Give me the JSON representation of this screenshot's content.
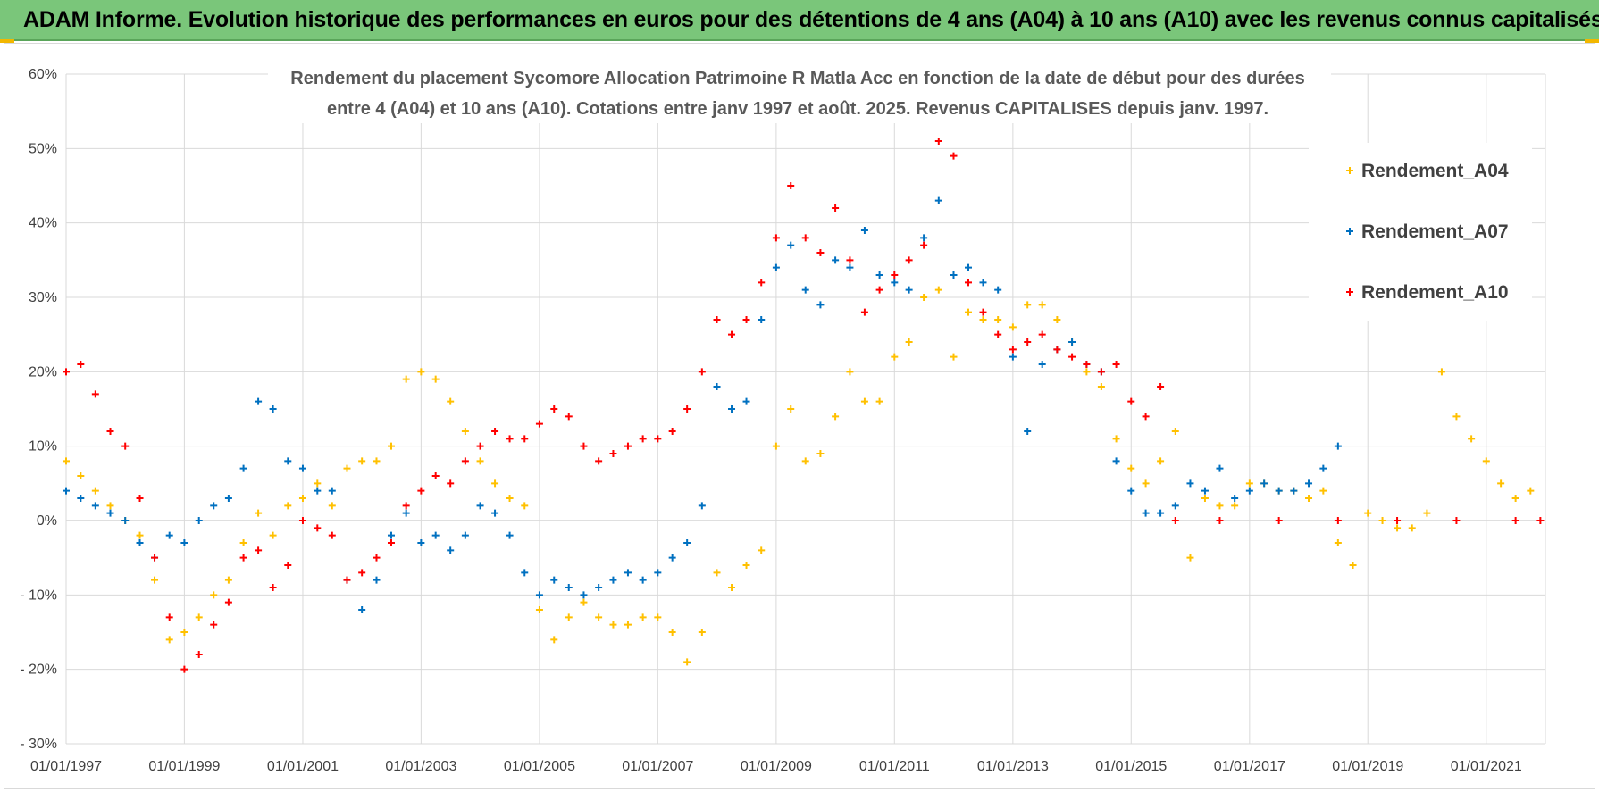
{
  "header": {
    "title": "ADAM Informe. Evolution historique des performances en euros pour des détentions de 4 ans (A04) à 10 ans (A10) avec les revenus connus capitalisés"
  },
  "colors": {
    "banner": "#7ac67a",
    "A04": "#ffc000",
    "A07": "#0070c0",
    "A10": "#ff0000",
    "grid": "#d9d9d9"
  },
  "chart_data": {
    "type": "scatter",
    "title_lines": [
      "Rendement du placement Sycomore  Allocation Patrimoine R Matla Acc en fonction de la date de début pour des durées",
      "entre 4 (A04) et 10 ans (A10).  Cotations entre janv 1997 et août. 2025. Revenus CAPITALISES depuis janv. 1997."
    ],
    "xlabel": "",
    "ylabel": "",
    "x_range": [
      "1997-01-01",
      "2022-01-01"
    ],
    "ylim": [
      -30,
      60
    ],
    "y_ticks": [
      60,
      50,
      40,
      30,
      20,
      10,
      0,
      -10,
      -20,
      -30
    ],
    "y_tick_labels": [
      "60%",
      "50%",
      "40%",
      "30%",
      "20%",
      "10%",
      "0%",
      "- 10%",
      "- 20%",
      "- 30%"
    ],
    "x_ticks": [
      "1997-01-01",
      "1999-01-01",
      "2001-01-01",
      "2003-01-01",
      "2005-01-01",
      "2007-01-01",
      "2009-01-01",
      "2011-01-01",
      "2013-01-01",
      "2015-01-01",
      "2017-01-01",
      "2019-01-01",
      "2021-01-01"
    ],
    "x_tick_labels": [
      "01/01/1997",
      "01/01/1999",
      "01/01/2001",
      "01/01/2003",
      "01/01/2005",
      "01/01/2007",
      "01/01/2009",
      "01/01/2011",
      "01/01/2013",
      "01/01/2015",
      "01/01/2017",
      "01/01/2019",
      "01/01/2021"
    ],
    "grid": true,
    "legend_position": "top-right",
    "marker": "+",
    "series": [
      {
        "name": "Rendement_A04",
        "color": "#ffc000",
        "points": [
          [
            "1997-01-01",
            8
          ],
          [
            "1997-04-01",
            6
          ],
          [
            "1997-07-01",
            4
          ],
          [
            "1997-10-01",
            2
          ],
          [
            "1998-01-01",
            0
          ],
          [
            "1998-04-01",
            -2
          ],
          [
            "1998-07-01",
            -8
          ],
          [
            "1998-10-01",
            -16
          ],
          [
            "1999-01-01",
            -15
          ],
          [
            "1999-04-01",
            -13
          ],
          [
            "1999-07-01",
            -10
          ],
          [
            "1999-10-01",
            -8
          ],
          [
            "2000-01-01",
            -3
          ],
          [
            "2000-04-01",
            1
          ],
          [
            "2000-07-01",
            -2
          ],
          [
            "2000-10-01",
            2
          ],
          [
            "2001-01-01",
            3
          ],
          [
            "2001-04-01",
            5
          ],
          [
            "2001-07-01",
            2
          ],
          [
            "2001-10-01",
            7
          ],
          [
            "2002-01-01",
            8
          ],
          [
            "2002-04-01",
            8
          ],
          [
            "2002-07-01",
            10
          ],
          [
            "2002-10-01",
            19
          ],
          [
            "2003-01-01",
            20
          ],
          [
            "2003-04-01",
            19
          ],
          [
            "2003-07-01",
            16
          ],
          [
            "2003-10-01",
            12
          ],
          [
            "2004-01-01",
            8
          ],
          [
            "2004-04-01",
            5
          ],
          [
            "2004-07-01",
            3
          ],
          [
            "2004-10-01",
            2
          ],
          [
            "2005-01-01",
            -12
          ],
          [
            "2005-04-01",
            -16
          ],
          [
            "2005-07-01",
            -13
          ],
          [
            "2005-10-01",
            -11
          ],
          [
            "2006-01-01",
            -13
          ],
          [
            "2006-04-01",
            -14
          ],
          [
            "2006-07-01",
            -14
          ],
          [
            "2006-10-01",
            -13
          ],
          [
            "2007-01-01",
            -13
          ],
          [
            "2007-04-01",
            -15
          ],
          [
            "2007-07-01",
            -19
          ],
          [
            "2007-10-01",
            -15
          ],
          [
            "2008-01-01",
            -7
          ],
          [
            "2008-04-01",
            -9
          ],
          [
            "2008-07-01",
            -6
          ],
          [
            "2008-10-01",
            -4
          ],
          [
            "2009-01-01",
            10
          ],
          [
            "2009-04-01",
            15
          ],
          [
            "2009-07-01",
            8
          ],
          [
            "2009-10-01",
            9
          ],
          [
            "2010-01-01",
            14
          ],
          [
            "2010-04-01",
            20
          ],
          [
            "2010-07-01",
            16
          ],
          [
            "2010-10-01",
            16
          ],
          [
            "2011-01-01",
            22
          ],
          [
            "2011-04-01",
            24
          ],
          [
            "2011-07-01",
            30
          ],
          [
            "2011-10-01",
            31
          ],
          [
            "2012-01-01",
            22
          ],
          [
            "2012-04-01",
            28
          ],
          [
            "2012-07-01",
            27
          ],
          [
            "2012-10-01",
            27
          ],
          [
            "2013-01-01",
            26
          ],
          [
            "2013-04-01",
            29
          ],
          [
            "2013-07-01",
            29
          ],
          [
            "2013-10-01",
            27
          ],
          [
            "2014-01-01",
            24
          ],
          [
            "2014-04-01",
            20
          ],
          [
            "2014-07-01",
            18
          ],
          [
            "2014-10-01",
            11
          ],
          [
            "2015-01-01",
            7
          ],
          [
            "2015-04-01",
            5
          ],
          [
            "2015-07-01",
            8
          ],
          [
            "2015-10-01",
            12
          ],
          [
            "2016-01-01",
            -5
          ],
          [
            "2016-04-01",
            3
          ],
          [
            "2016-07-01",
            2
          ],
          [
            "2016-10-01",
            2
          ],
          [
            "2017-01-01",
            5
          ],
          [
            "2017-04-01",
            5
          ],
          [
            "2017-07-01",
            4
          ],
          [
            "2017-10-01",
            4
          ],
          [
            "2018-01-01",
            3
          ],
          [
            "2018-04-01",
            4
          ],
          [
            "2018-07-01",
            -3
          ],
          [
            "2018-10-01",
            -6
          ],
          [
            "2019-01-01",
            1
          ],
          [
            "2019-04-01",
            0
          ],
          [
            "2019-07-01",
            -1
          ],
          [
            "2019-10-01",
            -1
          ],
          [
            "2020-01-01",
            1
          ],
          [
            "2020-04-01",
            20
          ],
          [
            "2020-07-01",
            14
          ],
          [
            "2020-10-01",
            11
          ],
          [
            "2021-01-01",
            8
          ],
          [
            "2021-04-01",
            5
          ],
          [
            "2021-07-01",
            3
          ],
          [
            "2021-10-01",
            4
          ]
        ]
      },
      {
        "name": "Rendement_A07",
        "color": "#0070c0",
        "points": [
          [
            "1997-01-01",
            4
          ],
          [
            "1997-04-01",
            3
          ],
          [
            "1997-07-01",
            2
          ],
          [
            "1997-10-01",
            1
          ],
          [
            "1998-01-01",
            0
          ],
          [
            "1998-04-01",
            -3
          ],
          [
            "1998-07-01",
            -5
          ],
          [
            "1998-10-01",
            -2
          ],
          [
            "1999-01-01",
            -3
          ],
          [
            "1999-04-01",
            0
          ],
          [
            "1999-07-01",
            2
          ],
          [
            "1999-10-01",
            3
          ],
          [
            "2000-01-01",
            7
          ],
          [
            "2000-04-01",
            16
          ],
          [
            "2000-07-01",
            15
          ],
          [
            "2000-10-01",
            8
          ],
          [
            "2001-01-01",
            7
          ],
          [
            "2001-04-01",
            4
          ],
          [
            "2001-07-01",
            4
          ],
          [
            "2001-10-01",
            -8
          ],
          [
            "2002-01-01",
            -12
          ],
          [
            "2002-04-01",
            -8
          ],
          [
            "2002-07-01",
            -2
          ],
          [
            "2002-10-01",
            1
          ],
          [
            "2003-01-01",
            -3
          ],
          [
            "2003-04-01",
            -2
          ],
          [
            "2003-07-01",
            -4
          ],
          [
            "2003-10-01",
            -2
          ],
          [
            "2004-01-01",
            2
          ],
          [
            "2004-04-01",
            1
          ],
          [
            "2004-07-01",
            -2
          ],
          [
            "2004-10-01",
            -7
          ],
          [
            "2005-01-01",
            -10
          ],
          [
            "2005-04-01",
            -8
          ],
          [
            "2005-07-01",
            -9
          ],
          [
            "2005-10-01",
            -10
          ],
          [
            "2006-01-01",
            -9
          ],
          [
            "2006-04-01",
            -8
          ],
          [
            "2006-07-01",
            -7
          ],
          [
            "2006-10-01",
            -8
          ],
          [
            "2007-01-01",
            -7
          ],
          [
            "2007-04-01",
            -5
          ],
          [
            "2007-07-01",
            -3
          ],
          [
            "2007-10-01",
            2
          ],
          [
            "2008-01-01",
            18
          ],
          [
            "2008-04-01",
            15
          ],
          [
            "2008-07-01",
            16
          ],
          [
            "2008-10-01",
            27
          ],
          [
            "2009-01-01",
            34
          ],
          [
            "2009-04-01",
            37
          ],
          [
            "2009-07-01",
            31
          ],
          [
            "2009-10-01",
            29
          ],
          [
            "2010-01-01",
            35
          ],
          [
            "2010-04-01",
            34
          ],
          [
            "2010-07-01",
            39
          ],
          [
            "2010-10-01",
            33
          ],
          [
            "2011-01-01",
            32
          ],
          [
            "2011-04-01",
            31
          ],
          [
            "2011-07-01",
            38
          ],
          [
            "2011-10-01",
            43
          ],
          [
            "2012-01-01",
            33
          ],
          [
            "2012-04-01",
            34
          ],
          [
            "2012-07-01",
            32
          ],
          [
            "2012-10-01",
            31
          ],
          [
            "2013-01-01",
            22
          ],
          [
            "2013-04-01",
            12
          ],
          [
            "2013-07-01",
            21
          ],
          [
            "2013-10-01",
            23
          ],
          [
            "2014-01-01",
            24
          ],
          [
            "2014-04-01",
            21
          ],
          [
            "2014-07-01",
            20
          ],
          [
            "2014-10-01",
            8
          ],
          [
            "2015-01-01",
            4
          ],
          [
            "2015-04-01",
            1
          ],
          [
            "2015-07-01",
            1
          ],
          [
            "2015-10-01",
            2
          ],
          [
            "2016-01-01",
            5
          ],
          [
            "2016-04-01",
            4
          ],
          [
            "2016-07-01",
            7
          ],
          [
            "2016-10-01",
            3
          ],
          [
            "2017-01-01",
            4
          ],
          [
            "2017-04-01",
            5
          ],
          [
            "2017-07-01",
            4
          ],
          [
            "2017-10-01",
            4
          ],
          [
            "2018-01-01",
            5
          ],
          [
            "2018-04-01",
            7
          ],
          [
            "2018-07-01",
            10
          ]
        ]
      },
      {
        "name": "Rendement_A10",
        "color": "#ff0000",
        "points": [
          [
            "1997-01-01",
            20
          ],
          [
            "1997-04-01",
            21
          ],
          [
            "1997-07-01",
            17
          ],
          [
            "1997-10-01",
            12
          ],
          [
            "1998-01-01",
            10
          ],
          [
            "1998-04-01",
            3
          ],
          [
            "1998-07-01",
            -5
          ],
          [
            "1998-10-01",
            -13
          ],
          [
            "1999-01-01",
            -20
          ],
          [
            "1999-04-01",
            -18
          ],
          [
            "1999-07-01",
            -14
          ],
          [
            "1999-10-01",
            -11
          ],
          [
            "2000-01-01",
            -5
          ],
          [
            "2000-04-01",
            -4
          ],
          [
            "2000-07-01",
            -9
          ],
          [
            "2000-10-01",
            -6
          ],
          [
            "2001-01-01",
            0
          ],
          [
            "2001-04-01",
            -1
          ],
          [
            "2001-07-01",
            -2
          ],
          [
            "2001-10-01",
            -8
          ],
          [
            "2002-01-01",
            -7
          ],
          [
            "2002-04-01",
            -5
          ],
          [
            "2002-07-01",
            -3
          ],
          [
            "2002-10-01",
            2
          ],
          [
            "2003-01-01",
            4
          ],
          [
            "2003-04-01",
            6
          ],
          [
            "2003-07-01",
            5
          ],
          [
            "2003-10-01",
            8
          ],
          [
            "2004-01-01",
            10
          ],
          [
            "2004-04-01",
            12
          ],
          [
            "2004-07-01",
            11
          ],
          [
            "2004-10-01",
            11
          ],
          [
            "2005-01-01",
            13
          ],
          [
            "2005-04-01",
            15
          ],
          [
            "2005-07-01",
            14
          ],
          [
            "2005-10-01",
            10
          ],
          [
            "2006-01-01",
            8
          ],
          [
            "2006-04-01",
            9
          ],
          [
            "2006-07-01",
            10
          ],
          [
            "2006-10-01",
            11
          ],
          [
            "2007-01-01",
            11
          ],
          [
            "2007-04-01",
            12
          ],
          [
            "2007-07-01",
            15
          ],
          [
            "2007-10-01",
            20
          ],
          [
            "2008-01-01",
            27
          ],
          [
            "2008-04-01",
            25
          ],
          [
            "2008-07-01",
            27
          ],
          [
            "2008-10-01",
            32
          ],
          [
            "2009-01-01",
            38
          ],
          [
            "2009-04-01",
            45
          ],
          [
            "2009-07-01",
            38
          ],
          [
            "2009-10-01",
            36
          ],
          [
            "2010-01-01",
            42
          ],
          [
            "2010-04-01",
            35
          ],
          [
            "2010-07-01",
            28
          ],
          [
            "2010-10-01",
            31
          ],
          [
            "2011-01-01",
            33
          ],
          [
            "2011-04-01",
            35
          ],
          [
            "2011-07-01",
            37
          ],
          [
            "2011-10-01",
            51
          ],
          [
            "2012-01-01",
            49
          ],
          [
            "2012-04-01",
            32
          ],
          [
            "2012-07-01",
            28
          ],
          [
            "2012-10-01",
            25
          ],
          [
            "2013-01-01",
            23
          ],
          [
            "2013-04-01",
            24
          ],
          [
            "2013-07-01",
            25
          ],
          [
            "2013-10-01",
            23
          ],
          [
            "2014-01-01",
            22
          ],
          [
            "2014-04-01",
            21
          ],
          [
            "2014-07-01",
            20
          ],
          [
            "2014-10-01",
            21
          ],
          [
            "2015-01-01",
            16
          ],
          [
            "2015-04-01",
            14
          ],
          [
            "2015-07-01",
            18
          ],
          [
            "2015-10-01",
            0
          ],
          [
            "2016-07-01",
            0
          ],
          [
            "2017-07-01",
            0
          ],
          [
            "2018-07-01",
            0
          ],
          [
            "2019-07-01",
            0
          ],
          [
            "2020-07-01",
            0
          ],
          [
            "2021-07-01",
            0
          ],
          [
            "2021-12-01",
            0
          ]
        ]
      }
    ]
  }
}
